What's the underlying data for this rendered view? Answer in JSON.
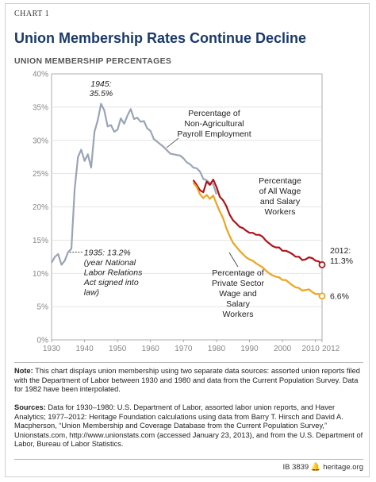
{
  "header": {
    "chart_label": "CHART 1",
    "title": "Union Membership Rates Continue Decline",
    "subtitle": "UNION MEMBERSHIP PERCENTAGES"
  },
  "colors": {
    "title": "#1a3a6b",
    "non_agricultural": "#9aa4b6",
    "all_workers": "#b0121b",
    "private_sector": "#f0a31c",
    "gridline": "#dddddd"
  },
  "chart_data": {
    "type": "line",
    "xlim": [
      1930,
      2012
    ],
    "ylim": [
      0,
      40
    ],
    "grid": true,
    "x_ticks": [
      "1930",
      "1940",
      "1950",
      "1960",
      "1970",
      "1980",
      "1990",
      "2000",
      "2010",
      "2012"
    ],
    "x_tick_values": [
      1930,
      1940,
      1950,
      1960,
      1970,
      1980,
      1990,
      2000,
      2010,
      2012
    ],
    "y_ticks": [
      "0%",
      "5%",
      "10%",
      "15%",
      "20%",
      "25%",
      "30%",
      "35%",
      "40%"
    ],
    "y_tick_values": [
      0,
      5,
      10,
      15,
      20,
      25,
      30,
      35,
      40
    ],
    "series": [
      {
        "key": "non_agricultural",
        "labels": [
          "Percentage of",
          "Non-Agricultural",
          "Payroll Employment"
        ],
        "x": [
          1930,
          1931,
          1932,
          1933,
          1934,
          1935,
          1936,
          1937,
          1938,
          1939,
          1940,
          1941,
          1942,
          1943,
          1944,
          1945,
          1946,
          1947,
          1948,
          1949,
          1950,
          1951,
          1952,
          1953,
          1954,
          1955,
          1956,
          1957,
          1958,
          1959,
          1960,
          1961,
          1962,
          1963,
          1964,
          1965,
          1966,
          1967,
          1968,
          1969,
          1970,
          1971,
          1972,
          1973,
          1974,
          1975,
          1976,
          1977,
          1978,
          1979,
          1980
        ],
        "y": [
          11.6,
          12.5,
          12.9,
          11.3,
          11.9,
          13.2,
          13.7,
          22.6,
          27.5,
          28.6,
          26.9,
          27.9,
          25.9,
          31.3,
          33.0,
          35.5,
          34.5,
          32.1,
          32.3,
          31.3,
          31.6,
          33.3,
          32.5,
          33.7,
          34.7,
          33.2,
          33.4,
          32.8,
          32.9,
          31.8,
          31.4,
          30.2,
          29.8,
          29.4,
          29.0,
          28.5,
          28.0,
          27.9,
          27.8,
          27.7,
          27.3,
          26.7,
          26.4,
          25.9,
          25.8,
          25.3,
          24.2,
          24.0,
          23.6,
          23.4,
          21.9
        ]
      },
      {
        "key": "all_workers",
        "labels": [
          "Percentage",
          "of All Wage",
          "and Salary",
          "Workers"
        ],
        "x": [
          1973,
          1974,
          1975,
          1976,
          1977,
          1978,
          1979,
          1980,
          1981,
          1982,
          1983,
          1984,
          1985,
          1986,
          1987,
          1988,
          1989,
          1990,
          1991,
          1992,
          1993,
          1994,
          1995,
          1996,
          1997,
          1998,
          1999,
          2000,
          2001,
          2002,
          2003,
          2004,
          2005,
          2006,
          2007,
          2008,
          2009,
          2010,
          2011,
          2012
        ],
        "y": [
          24.0,
          23.3,
          22.5,
          22.2,
          23.8,
          23.3,
          24.1,
          23.0,
          21.5,
          21.0,
          20.1,
          18.8,
          18.0,
          17.5,
          17.0,
          16.8,
          16.4,
          16.1,
          16.1,
          15.8,
          15.8,
          15.5,
          14.9,
          14.5,
          14.1,
          13.9,
          13.9,
          13.4,
          13.4,
          13.2,
          12.9,
          12.5,
          12.5,
          12.0,
          12.1,
          12.4,
          12.3,
          11.9,
          11.8,
          11.3
        ]
      },
      {
        "key": "private_sector",
        "labels": [
          "Percentage of",
          "Private Sector",
          "Wage and",
          "Salary",
          "Workers"
        ],
        "x": [
          1973,
          1974,
          1975,
          1976,
          1977,
          1978,
          1979,
          1980,
          1981,
          1982,
          1983,
          1984,
          1985,
          1986,
          1987,
          1988,
          1989,
          1990,
          1991,
          1992,
          1993,
          1994,
          1995,
          1996,
          1997,
          1998,
          1999,
          2000,
          2001,
          2002,
          2003,
          2004,
          2005,
          2006,
          2007,
          2008,
          2009,
          2010,
          2011,
          2012
        ],
        "y": [
          23.6,
          23.0,
          21.9,
          21.3,
          21.8,
          21.2,
          21.7,
          20.5,
          19.3,
          18.3,
          16.8,
          15.6,
          14.6,
          14.0,
          13.4,
          12.9,
          12.4,
          12.1,
          11.9,
          11.5,
          11.2,
          10.9,
          10.4,
          10.0,
          9.7,
          9.5,
          9.4,
          9.0,
          9.0,
          8.6,
          8.2,
          7.9,
          7.8,
          7.4,
          7.5,
          7.6,
          7.2,
          6.9,
          6.9,
          6.6
        ]
      }
    ],
    "annotations": {
      "peak": [
        "1945:",
        "35.5%"
      ],
      "act": [
        "1935: 13.2%",
        "(year National",
        "Labor Relations",
        "Act signed into",
        "law)"
      ],
      "end_all_label": [
        "2012:",
        "11.3%"
      ],
      "end_private_label": "6.6%"
    }
  },
  "note": {
    "label": "Note:",
    "text": " This chart displays union membership using two separate data sources: assorted union reports filed with the Department of Labor between 1930 and 1980 and data from the Current Population Survey. Data for 1982 have been interpolated."
  },
  "sources": {
    "label": "Sources:",
    "text": " Data for 1930–1980: U.S. Department of Labor, assorted labor union reports, and Haver Analytics; 1977–2012: Heritage Foundation calculations using data from Barry T. Hirsch and David A. Macpherson, “Union Membership and Coverage Database from the Current Population Survey,” Unionstats.com, http://www.unionstats.com (accessed January 23, 2013), and from the U.S. Department of Labor, Bureau of Labor Statistics."
  },
  "footer": {
    "id": "IB 3839",
    "site": "heritage.org",
    "bell_icon": "bell-icon"
  }
}
